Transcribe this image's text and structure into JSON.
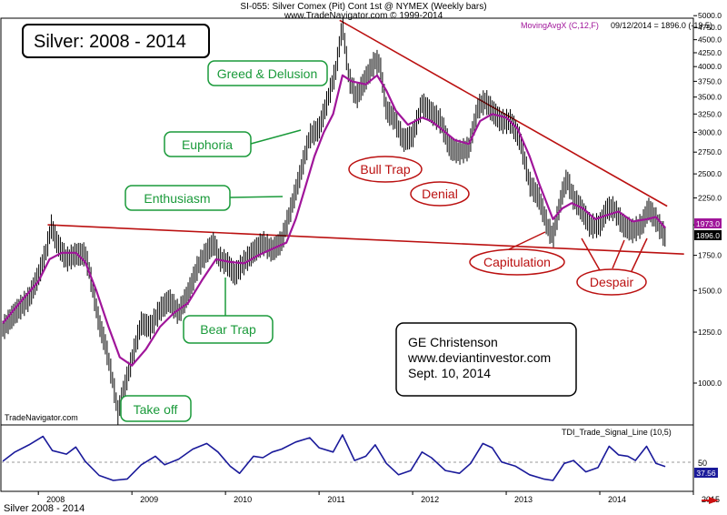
{
  "header": {
    "title": "SI-055:  Silver Comex (Pit) Cont 1st @ NYMEX  (Weekly bars)",
    "website": "www.TradeNavigator.com © 1999-2014",
    "indicator": "MovingAvgX (C,12,F)",
    "date_readout": "09/12/2014 = 1896.0 (-19.5)"
  },
  "chart_box_title": "Silver:  2008 - 2014",
  "watermark": "TradeNavigator.com",
  "footer_label": "Silver 2008 - 2014",
  "author_box": {
    "line1": "GE Christenson",
    "line2": "www.deviantinvestor.com",
    "line3": "Sept. 10, 2014"
  },
  "colors": {
    "price": "#000000",
    "moving_avg": "#a0159a",
    "trend_line": "#bb1111",
    "oscillator": "#1a1a9a",
    "green_label": "#1a9a3a",
    "red_label": "#bb1111"
  },
  "indicator_panel": {
    "label": "TDI_Trade_Signal_Line (10,5)",
    "level_label": "50",
    "value_label": "37.56"
  },
  "price_tags": {
    "ma": "1973.0",
    "last": "1896.0"
  },
  "chart_data": {
    "type": "line",
    "y_scale": "log",
    "ylim": [
      800,
      5000
    ],
    "xlim": [
      2007.6,
      2015.0
    ],
    "y_ticks": [
      5000,
      4750,
      4500,
      4250,
      4000,
      3750,
      3500,
      3250,
      3000,
      2750,
      2500,
      2250,
      2000,
      1750,
      1500,
      1250,
      1000
    ],
    "y_tick_labels": [
      "5000.0",
      "4750.0",
      "4500.0",
      "4250.0",
      "4000.0",
      "3750.0",
      "3500.0",
      "3250.0",
      "3000.0",
      "2750.0",
      "2500.0",
      "2250.0",
      "2000.0",
      "1750.0",
      "1500.0",
      "1250.0",
      "1000.0"
    ],
    "x_ticks": [
      "2008",
      "2009",
      "2010",
      "2011",
      "2012",
      "2013",
      "2014",
      "2015"
    ],
    "series": [
      {
        "name": "Silver",
        "points": [
          [
            2007.62,
            1270
          ],
          [
            2007.75,
            1360
          ],
          [
            2007.9,
            1450
          ],
          [
            2008.0,
            1600
          ],
          [
            2008.08,
            1770
          ],
          [
            2008.14,
            1990
          ],
          [
            2008.2,
            1850
          ],
          [
            2008.3,
            1720
          ],
          [
            2008.4,
            1760
          ],
          [
            2008.5,
            1760
          ],
          [
            2008.55,
            1620
          ],
          [
            2008.65,
            1300
          ],
          [
            2008.72,
            1180
          ],
          [
            2008.8,
            1000
          ],
          [
            2008.85,
            880
          ],
          [
            2008.9,
            950
          ],
          [
            2009.0,
            1110
          ],
          [
            2009.1,
            1300
          ],
          [
            2009.2,
            1280
          ],
          [
            2009.3,
            1380
          ],
          [
            2009.4,
            1440
          ],
          [
            2009.5,
            1360
          ],
          [
            2009.6,
            1480
          ],
          [
            2009.7,
            1660
          ],
          [
            2009.8,
            1780
          ],
          [
            2009.88,
            1850
          ],
          [
            2009.93,
            1730
          ],
          [
            2010.02,
            1690
          ],
          [
            2010.1,
            1610
          ],
          [
            2010.2,
            1700
          ],
          [
            2010.3,
            1780
          ],
          [
            2010.4,
            1850
          ],
          [
            2010.5,
            1790
          ],
          [
            2010.6,
            1860
          ],
          [
            2010.7,
            2150
          ],
          [
            2010.8,
            2500
          ],
          [
            2010.9,
            2950
          ],
          [
            2011.0,
            3050
          ],
          [
            2011.08,
            3400
          ],
          [
            2011.18,
            3950
          ],
          [
            2011.25,
            4800
          ],
          [
            2011.32,
            3800
          ],
          [
            2011.4,
            3500
          ],
          [
            2011.5,
            3800
          ],
          [
            2011.6,
            4100
          ],
          [
            2011.65,
            4050
          ],
          [
            2011.72,
            3300
          ],
          [
            2011.8,
            3200
          ],
          [
            2011.9,
            2900
          ],
          [
            2012.0,
            2950
          ],
          [
            2012.1,
            3400
          ],
          [
            2012.18,
            3300
          ],
          [
            2012.3,
            3150
          ],
          [
            2012.4,
            2800
          ],
          [
            2012.5,
            2750
          ],
          [
            2012.6,
            2800
          ],
          [
            2012.7,
            3350
          ],
          [
            2012.78,
            3450
          ],
          [
            2012.85,
            3300
          ],
          [
            2012.95,
            3150
          ],
          [
            2013.05,
            3150
          ],
          [
            2013.15,
            2900
          ],
          [
            2013.25,
            2400
          ],
          [
            2013.35,
            2250
          ],
          [
            2013.45,
            1970
          ],
          [
            2013.5,
            1900
          ],
          [
            2013.6,
            2300
          ],
          [
            2013.65,
            2450
          ],
          [
            2013.72,
            2250
          ],
          [
            2013.8,
            2150
          ],
          [
            2013.9,
            1990
          ],
          [
            2014.0,
            2000
          ],
          [
            2014.08,
            2150
          ],
          [
            2014.15,
            2150
          ],
          [
            2014.25,
            2000
          ],
          [
            2014.35,
            1950
          ],
          [
            2014.45,
            2000
          ],
          [
            2014.52,
            2150
          ],
          [
            2014.6,
            2050
          ],
          [
            2014.65,
            1970
          ],
          [
            2014.7,
            1896
          ]
        ]
      },
      {
        "name": "MovingAvgX (C,12,F)",
        "points": [
          [
            2007.62,
            1300
          ],
          [
            2007.8,
            1420
          ],
          [
            2008.0,
            1560
          ],
          [
            2008.12,
            1720
          ],
          [
            2008.25,
            1770
          ],
          [
            2008.4,
            1770
          ],
          [
            2008.5,
            1700
          ],
          [
            2008.62,
            1500
          ],
          [
            2008.75,
            1280
          ],
          [
            2008.87,
            1120
          ],
          [
            2009.0,
            1080
          ],
          [
            2009.15,
            1160
          ],
          [
            2009.3,
            1280
          ],
          [
            2009.45,
            1360
          ],
          [
            2009.6,
            1420
          ],
          [
            2009.75,
            1570
          ],
          [
            2009.9,
            1720
          ],
          [
            2010.05,
            1700
          ],
          [
            2010.2,
            1690
          ],
          [
            2010.35,
            1750
          ],
          [
            2010.5,
            1800
          ],
          [
            2010.65,
            1850
          ],
          [
            2010.75,
            2050
          ],
          [
            2010.85,
            2350
          ],
          [
            2010.95,
            2700
          ],
          [
            2011.05,
            3000
          ],
          [
            2011.15,
            3250
          ],
          [
            2011.25,
            3850
          ],
          [
            2011.35,
            3750
          ],
          [
            2011.5,
            3700
          ],
          [
            2011.62,
            3850
          ],
          [
            2011.72,
            3600
          ],
          [
            2011.82,
            3300
          ],
          [
            2011.95,
            3100
          ],
          [
            2012.1,
            3200
          ],
          [
            2012.2,
            3150
          ],
          [
            2012.3,
            3050
          ],
          [
            2012.45,
            2900
          ],
          [
            2012.6,
            2850
          ],
          [
            2012.72,
            3150
          ],
          [
            2012.85,
            3250
          ],
          [
            2013.0,
            3200
          ],
          [
            2013.12,
            3050
          ],
          [
            2013.25,
            2700
          ],
          [
            2013.35,
            2400
          ],
          [
            2013.5,
            2050
          ],
          [
            2013.6,
            2150
          ],
          [
            2013.7,
            2200
          ],
          [
            2013.82,
            2150
          ],
          [
            2013.95,
            2050
          ],
          [
            2014.05,
            2080
          ],
          [
            2014.2,
            2120
          ],
          [
            2014.35,
            2030
          ],
          [
            2014.5,
            2050
          ],
          [
            2014.6,
            2070
          ],
          [
            2014.7,
            1973
          ]
        ]
      },
      {
        "name": "TDI_Trade_Signal_Line (10,5)",
        "points": [
          [
            2007.62,
            45
          ],
          [
            2007.75,
            58
          ],
          [
            2007.9,
            68
          ],
          [
            2008.05,
            80
          ],
          [
            2008.15,
            60
          ],
          [
            2008.3,
            55
          ],
          [
            2008.4,
            65
          ],
          [
            2008.5,
            45
          ],
          [
            2008.65,
            25
          ],
          [
            2008.8,
            18
          ],
          [
            2008.95,
            20
          ],
          [
            2009.1,
            40
          ],
          [
            2009.25,
            52
          ],
          [
            2009.35,
            40
          ],
          [
            2009.5,
            48
          ],
          [
            2009.65,
            62
          ],
          [
            2009.8,
            70
          ],
          [
            2009.92,
            58
          ],
          [
            2010.05,
            38
          ],
          [
            2010.15,
            28
          ],
          [
            2010.3,
            52
          ],
          [
            2010.4,
            50
          ],
          [
            2010.5,
            58
          ],
          [
            2010.6,
            62
          ],
          [
            2010.75,
            72
          ],
          [
            2010.9,
            78
          ],
          [
            2011.0,
            64
          ],
          [
            2011.15,
            58
          ],
          [
            2011.25,
            82
          ],
          [
            2011.38,
            46
          ],
          [
            2011.5,
            52
          ],
          [
            2011.6,
            68
          ],
          [
            2011.72,
            42
          ],
          [
            2011.85,
            26
          ],
          [
            2011.98,
            32
          ],
          [
            2012.1,
            58
          ],
          [
            2012.2,
            50
          ],
          [
            2012.35,
            32
          ],
          [
            2012.5,
            28
          ],
          [
            2012.62,
            42
          ],
          [
            2012.75,
            70
          ],
          [
            2012.85,
            64
          ],
          [
            2012.95,
            44
          ],
          [
            2013.1,
            38
          ],
          [
            2013.25,
            26
          ],
          [
            2013.4,
            20
          ],
          [
            2013.5,
            18
          ],
          [
            2013.62,
            42
          ],
          [
            2013.72,
            46
          ],
          [
            2013.85,
            30
          ],
          [
            2013.98,
            36
          ],
          [
            2014.1,
            66
          ],
          [
            2014.2,
            54
          ],
          [
            2014.3,
            52
          ],
          [
            2014.38,
            46
          ],
          [
            2014.5,
            66
          ],
          [
            2014.6,
            42
          ],
          [
            2014.7,
            37.56
          ]
        ]
      }
    ],
    "trend_lines": [
      {
        "name": "Resistance",
        "from": [
          2011.22,
          4900
        ],
        "to": [
          2014.72,
          2170
        ]
      },
      {
        "name": "Support",
        "from": [
          2008.1,
          2000
        ],
        "to": [
          2014.9,
          1760
        ]
      }
    ],
    "annotations": [
      {
        "text": "Greed & Delusion",
        "style": "green"
      },
      {
        "text": "Euphoria",
        "style": "green"
      },
      {
        "text": "Enthusiasm",
        "style": "green"
      },
      {
        "text": "Bear Trap",
        "style": "green"
      },
      {
        "text": "Take off",
        "style": "green"
      },
      {
        "text": "Bull Trap",
        "style": "red"
      },
      {
        "text": "Denial",
        "style": "red"
      },
      {
        "text": "Capitulation",
        "style": "red"
      },
      {
        "text": "Despair",
        "style": "red"
      }
    ]
  }
}
